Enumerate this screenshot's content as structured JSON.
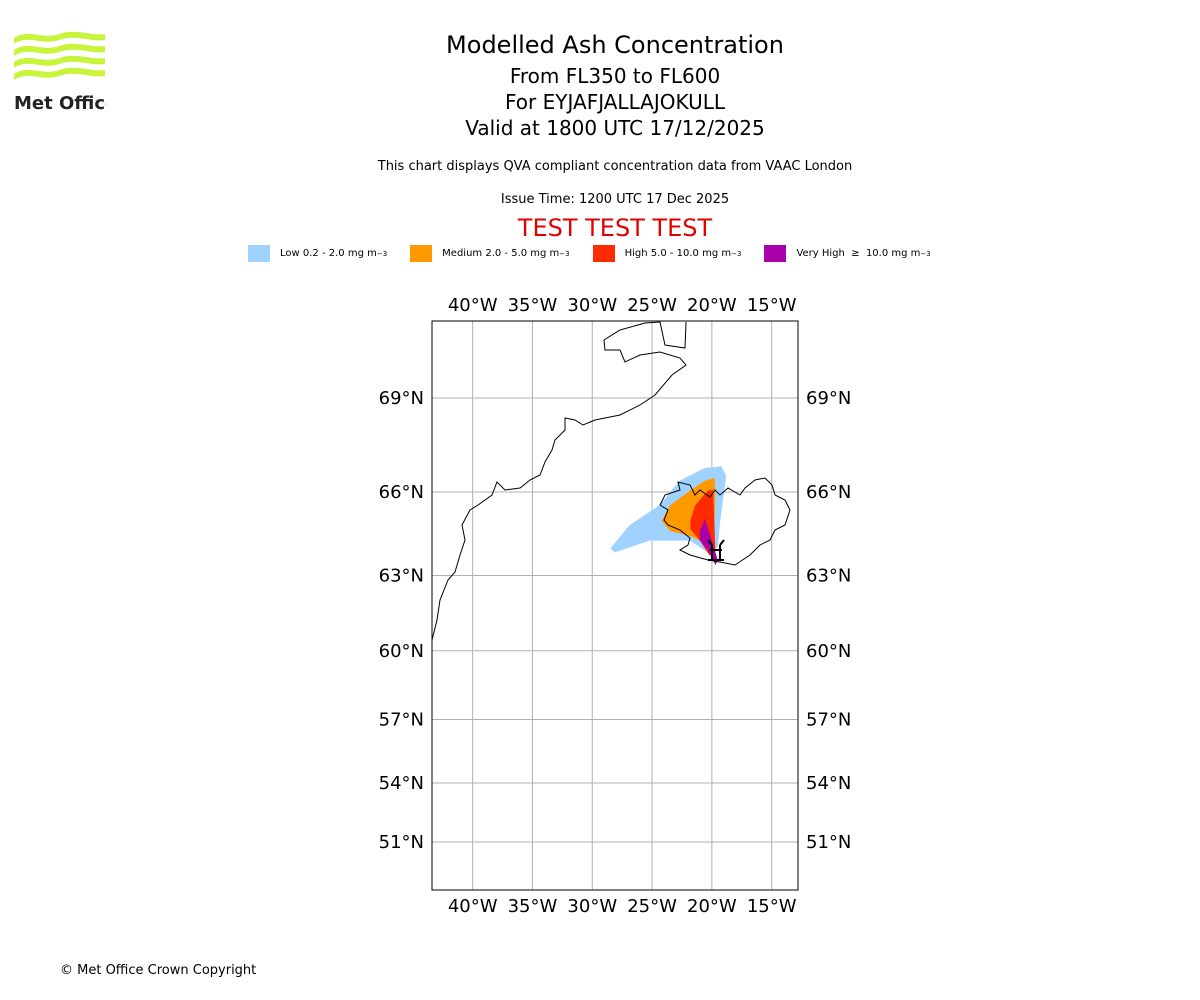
{
  "logo": {
    "text": "Met Office",
    "color": "#c8f53c"
  },
  "header": {
    "title": "Modelled Ash Concentration",
    "levels": "From FL350 to FL600",
    "volcano": "For EYJAFJALLAJOKULL",
    "valid": "Valid at 1800 UTC 17/12/2025",
    "description": "This chart displays QVA compliant concentration data from VAAC London",
    "issue": "Issue Time: 1200 UTC 17 Dec 2025",
    "test_banner": "TEST TEST TEST"
  },
  "legend": [
    {
      "label": "Low 0.2 - 2.0 mg m",
      "exp": "−3",
      "color": "#a0d2ff"
    },
    {
      "label": "Medium 2.0 - 5.0 mg m",
      "exp": "−3",
      "color": "#ff9900"
    },
    {
      "label": "High 5.0 - 10.0 mg m",
      "exp": "−3",
      "color": "#ff2a00"
    },
    {
      "label": "Very High  ≥  10.0 mg m",
      "exp": "−3",
      "color": "#aa00aa"
    }
  ],
  "footer": {
    "copyright": "© Met Office Crown Copyright"
  },
  "chart_data": {
    "type": "map",
    "projection": "mercator",
    "extent": {
      "lon": [
        -43.4,
        -12.8
      ],
      "lat": [
        48.9,
        71.3
      ]
    },
    "lon_ticks": [
      -40,
      -35,
      -30,
      -25,
      -20,
      -15
    ],
    "lon_tick_labels": [
      "40°W",
      "35°W",
      "30°W",
      "25°W",
      "20°W",
      "15°W"
    ],
    "lat_ticks": [
      69,
      66,
      63,
      60,
      57,
      54,
      51
    ],
    "lat_tick_labels": [
      "69°N",
      "66°N",
      "63°N",
      "60°N",
      "57°N",
      "54°N",
      "51°N"
    ],
    "grid": true,
    "ash_areas": [
      {
        "level": "Low",
        "color": "#a0d2ff",
        "polygon": [
          [
            -28.5,
            64.0
          ],
          [
            -26.9,
            64.84
          ],
          [
            -24.4,
            65.54
          ],
          [
            -22.7,
            66.38
          ],
          [
            -20.6,
            66.8
          ],
          [
            -19.2,
            66.86
          ],
          [
            -18.8,
            66.54
          ],
          [
            -19.3,
            65.0
          ],
          [
            -19.5,
            64.1
          ],
          [
            -20.0,
            63.75
          ],
          [
            -21.8,
            64.29
          ],
          [
            -25.2,
            64.29
          ],
          [
            -28.1,
            63.86
          ]
        ]
      },
      {
        "level": "Medium",
        "color": "#ff9900",
        "polygon": [
          [
            -24.2,
            65.0
          ],
          [
            -23.5,
            65.54
          ],
          [
            -21.8,
            66.06
          ],
          [
            -20.6,
            66.38
          ],
          [
            -19.8,
            66.48
          ],
          [
            -19.7,
            66.06
          ],
          [
            -19.8,
            64.64
          ],
          [
            -20.0,
            64.0
          ],
          [
            -21.0,
            64.29
          ],
          [
            -21.8,
            64.46
          ],
          [
            -23.5,
            64.64
          ]
        ]
      },
      {
        "level": "High",
        "color": "#ff2a00",
        "polygon": [
          [
            -21.8,
            65.0
          ],
          [
            -21.4,
            65.54
          ],
          [
            -20.3,
            66.06
          ],
          [
            -19.9,
            66.06
          ],
          [
            -19.8,
            65.0
          ],
          [
            -19.7,
            63.75
          ],
          [
            -20.2,
            63.75
          ],
          [
            -21.0,
            64.29
          ],
          [
            -21.8,
            64.71
          ]
        ]
      },
      {
        "level": "Very High",
        "color": "#aa00aa",
        "polygon": [
          [
            -21.0,
            64.64
          ],
          [
            -20.6,
            65.07
          ],
          [
            -20.0,
            64.29
          ],
          [
            -19.5,
            63.57
          ],
          [
            -19.7,
            63.39
          ],
          [
            -20.3,
            63.93
          ],
          [
            -21.0,
            64.29
          ]
        ]
      }
    ]
  }
}
